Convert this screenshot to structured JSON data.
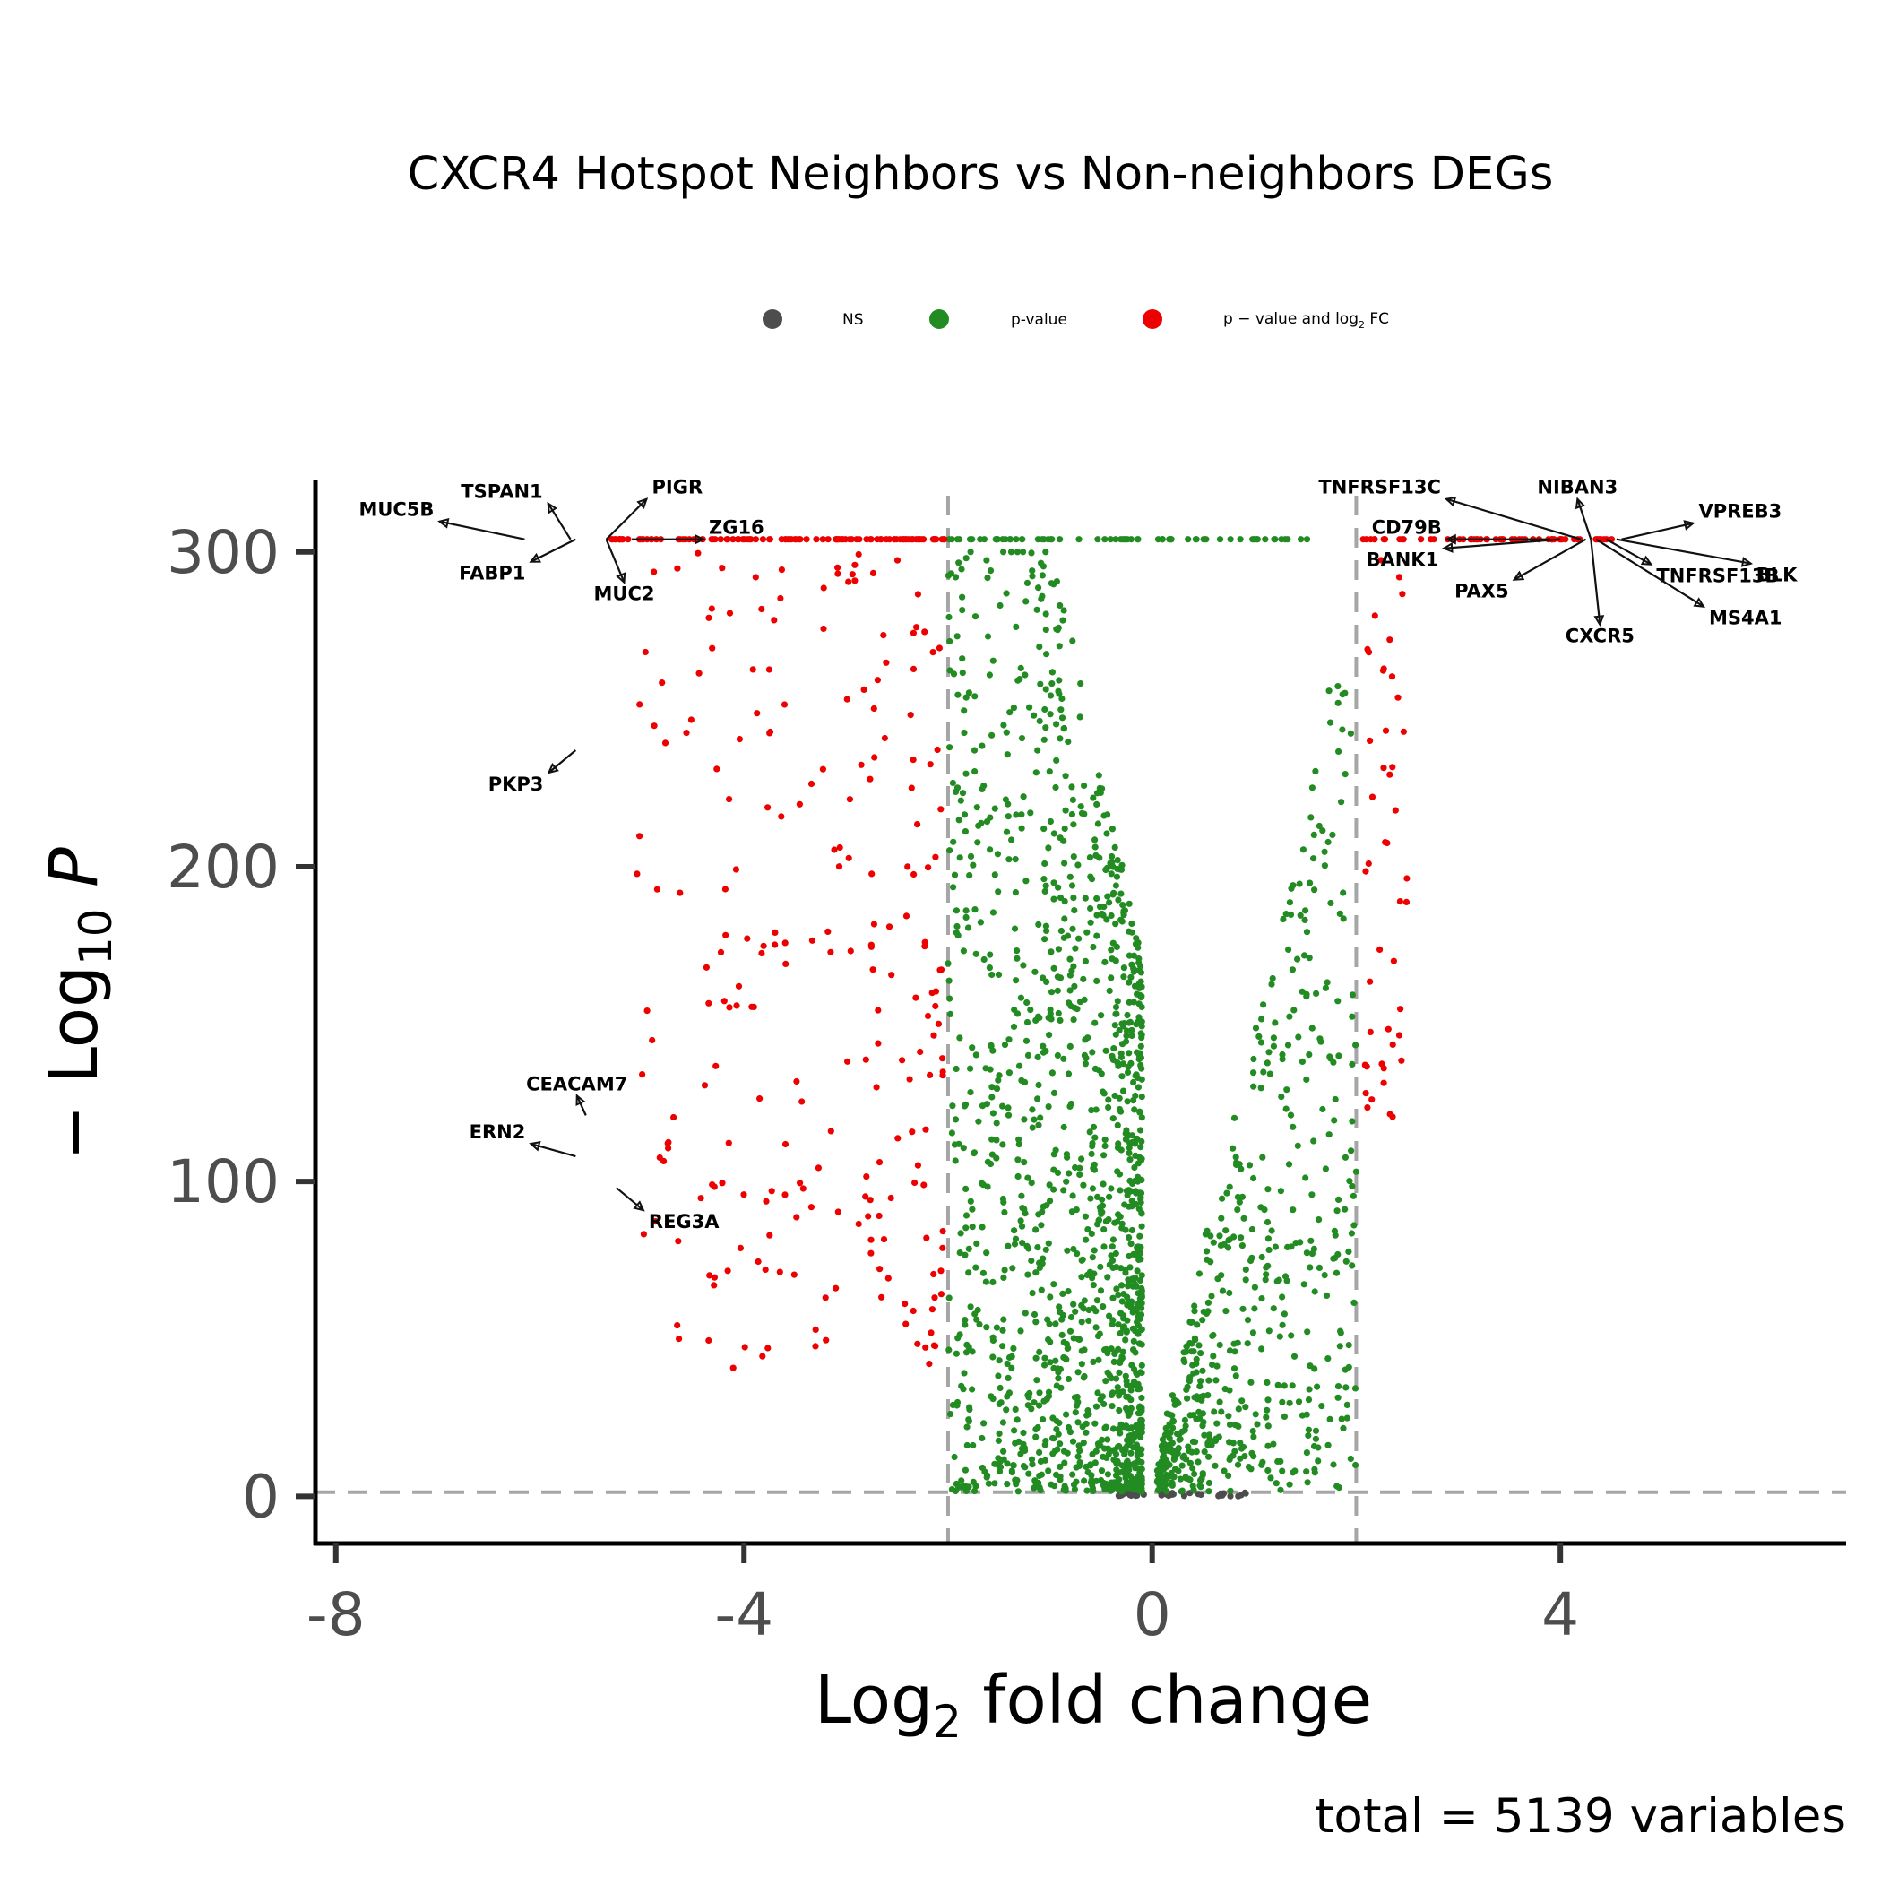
{
  "chart_data": {
    "type": "scatter",
    "title": "CXCR4 Hotspot Neighbors vs Non-neighbors DEGs",
    "xlabel": "Log2 fold change",
    "ylabel": "−Log10 P",
    "xlim": [
      -8.2,
      6.8
    ],
    "ylim": [
      -15,
      323
    ],
    "x_ticks": [
      "-8",
      "-4",
      "0",
      "4"
    ],
    "y_ticks": [
      "0",
      "100",
      "200",
      "300"
    ],
    "thresholds": {
      "log2fc": [
        -2,
        2
      ],
      "neg_log10_p": 1.3
    },
    "legend_position": "top",
    "legend": [
      {
        "name": "NS",
        "color": "#4d4d4d"
      },
      {
        "name": "p-value",
        "color": "#228b22"
      },
      {
        "name": "p − value and log2 FC",
        "color": "#ee0000"
      }
    ],
    "caption": "total = 5139 variables",
    "series": [
      {
        "name": "NS",
        "color": "#4d4d4d",
        "n_points": 60
      },
      {
        "name": "p-value",
        "color": "#228b22",
        "n_points": 4580
      },
      {
        "name": "p − value and log2 FC",
        "color": "#ee0000",
        "n_points": 499
      }
    ],
    "labeled_genes": [
      {
        "gene": "MUC5B",
        "x": -6.15,
        "y": 304
      },
      {
        "gene": "TSPAN1",
        "x": -5.7,
        "y": 304
      },
      {
        "gene": "FABP1",
        "x": -5.65,
        "y": 304
      },
      {
        "gene": "PIGR",
        "x": -5.35,
        "y": 304
      },
      {
        "gene": "ZG16",
        "x": -5.1,
        "y": 304
      },
      {
        "gene": "MUC2",
        "x": -5.35,
        "y": 304
      },
      {
        "gene": "PKP3",
        "x": -5.65,
        "y": 237
      },
      {
        "gene": "CEACAM7",
        "x": -5.55,
        "y": 121
      },
      {
        "gene": "ERN2",
        "x": -5.65,
        "y": 108
      },
      {
        "gene": "REG3A",
        "x": -5.25,
        "y": 98
      },
      {
        "gene": "TNFRSF13C",
        "x": 4.2,
        "y": 304
      },
      {
        "gene": "NIBAN3",
        "x": 4.3,
        "y": 304
      },
      {
        "gene": "VPREB3",
        "x": 4.6,
        "y": 304
      },
      {
        "gene": "CD79B",
        "x": 3.9,
        "y": 304
      },
      {
        "gene": "BANK1",
        "x": 4.0,
        "y": 304
      },
      {
        "gene": "TNFRSF13B",
        "x": 4.45,
        "y": 304
      },
      {
        "gene": "BLK",
        "x": 4.55,
        "y": 304
      },
      {
        "gene": "PAX5",
        "x": 4.25,
        "y": 304
      },
      {
        "gene": "MS4A1",
        "x": 4.35,
        "y": 304
      },
      {
        "gene": "CXCR5",
        "x": 4.3,
        "y": 304
      }
    ]
  }
}
